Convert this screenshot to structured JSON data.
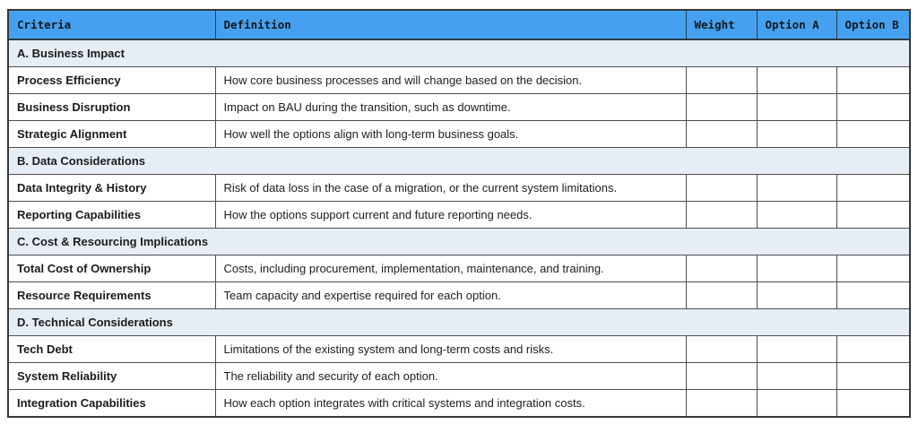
{
  "colors": {
    "header_bg": "#45a1f0",
    "section_bg": "#e7edf4",
    "border": "#4d4d4d",
    "text": "#1b1b1b"
  },
  "table": {
    "columns": [
      "Criteria",
      "Definition",
      "Weight",
      "Option A",
      "Option B"
    ],
    "sections": [
      {
        "title": "A. Business Impact",
        "rows": [
          {
            "criteria": "Process Efficiency",
            "definition": "How core business processes and will change based on the decision.",
            "weight": "",
            "option_a": "",
            "option_b": ""
          },
          {
            "criteria": "Business Disruption",
            "definition": "Impact on BAU during the transition, such as downtime.",
            "weight": "",
            "option_a": "",
            "option_b": ""
          },
          {
            "criteria": "Strategic Alignment",
            "definition": "How well the options align with long-term business goals.",
            "weight": "",
            "option_a": "",
            "option_b": ""
          }
        ]
      },
      {
        "title": "B. Data Considerations",
        "rows": [
          {
            "criteria": "Data Integrity & History",
            "definition": "Risk of data loss in the case of a migration, or the current system limitations.",
            "weight": "",
            "option_a": "",
            "option_b": ""
          },
          {
            "criteria": "Reporting Capabilities",
            "definition": "How the options support current and future reporting needs.",
            "weight": "",
            "option_a": "",
            "option_b": ""
          }
        ]
      },
      {
        "title": "C. Cost & Resourcing Implications",
        "rows": [
          {
            "criteria": "Total Cost of Ownership",
            "definition": "Costs, including procurement, implementation, maintenance, and training.",
            "weight": "",
            "option_a": "",
            "option_b": ""
          },
          {
            "criteria": "Resource Requirements",
            "definition": "Team capacity and expertise required for each option.",
            "weight": "",
            "option_a": "",
            "option_b": ""
          }
        ]
      },
      {
        "title": "D. Technical Considerations",
        "rows": [
          {
            "criteria": "Tech Debt",
            "definition": "Limitations of the existing system and long-term costs and risks.",
            "weight": "",
            "option_a": "",
            "option_b": ""
          },
          {
            "criteria": "System Reliability",
            "definition": "The reliability and security of each option.",
            "weight": "",
            "option_a": "",
            "option_b": ""
          },
          {
            "criteria": "Integration Capabilities",
            "definition": "How each option integrates with critical systems and integration costs.",
            "weight": "",
            "option_a": "",
            "option_b": ""
          }
        ]
      }
    ]
  }
}
